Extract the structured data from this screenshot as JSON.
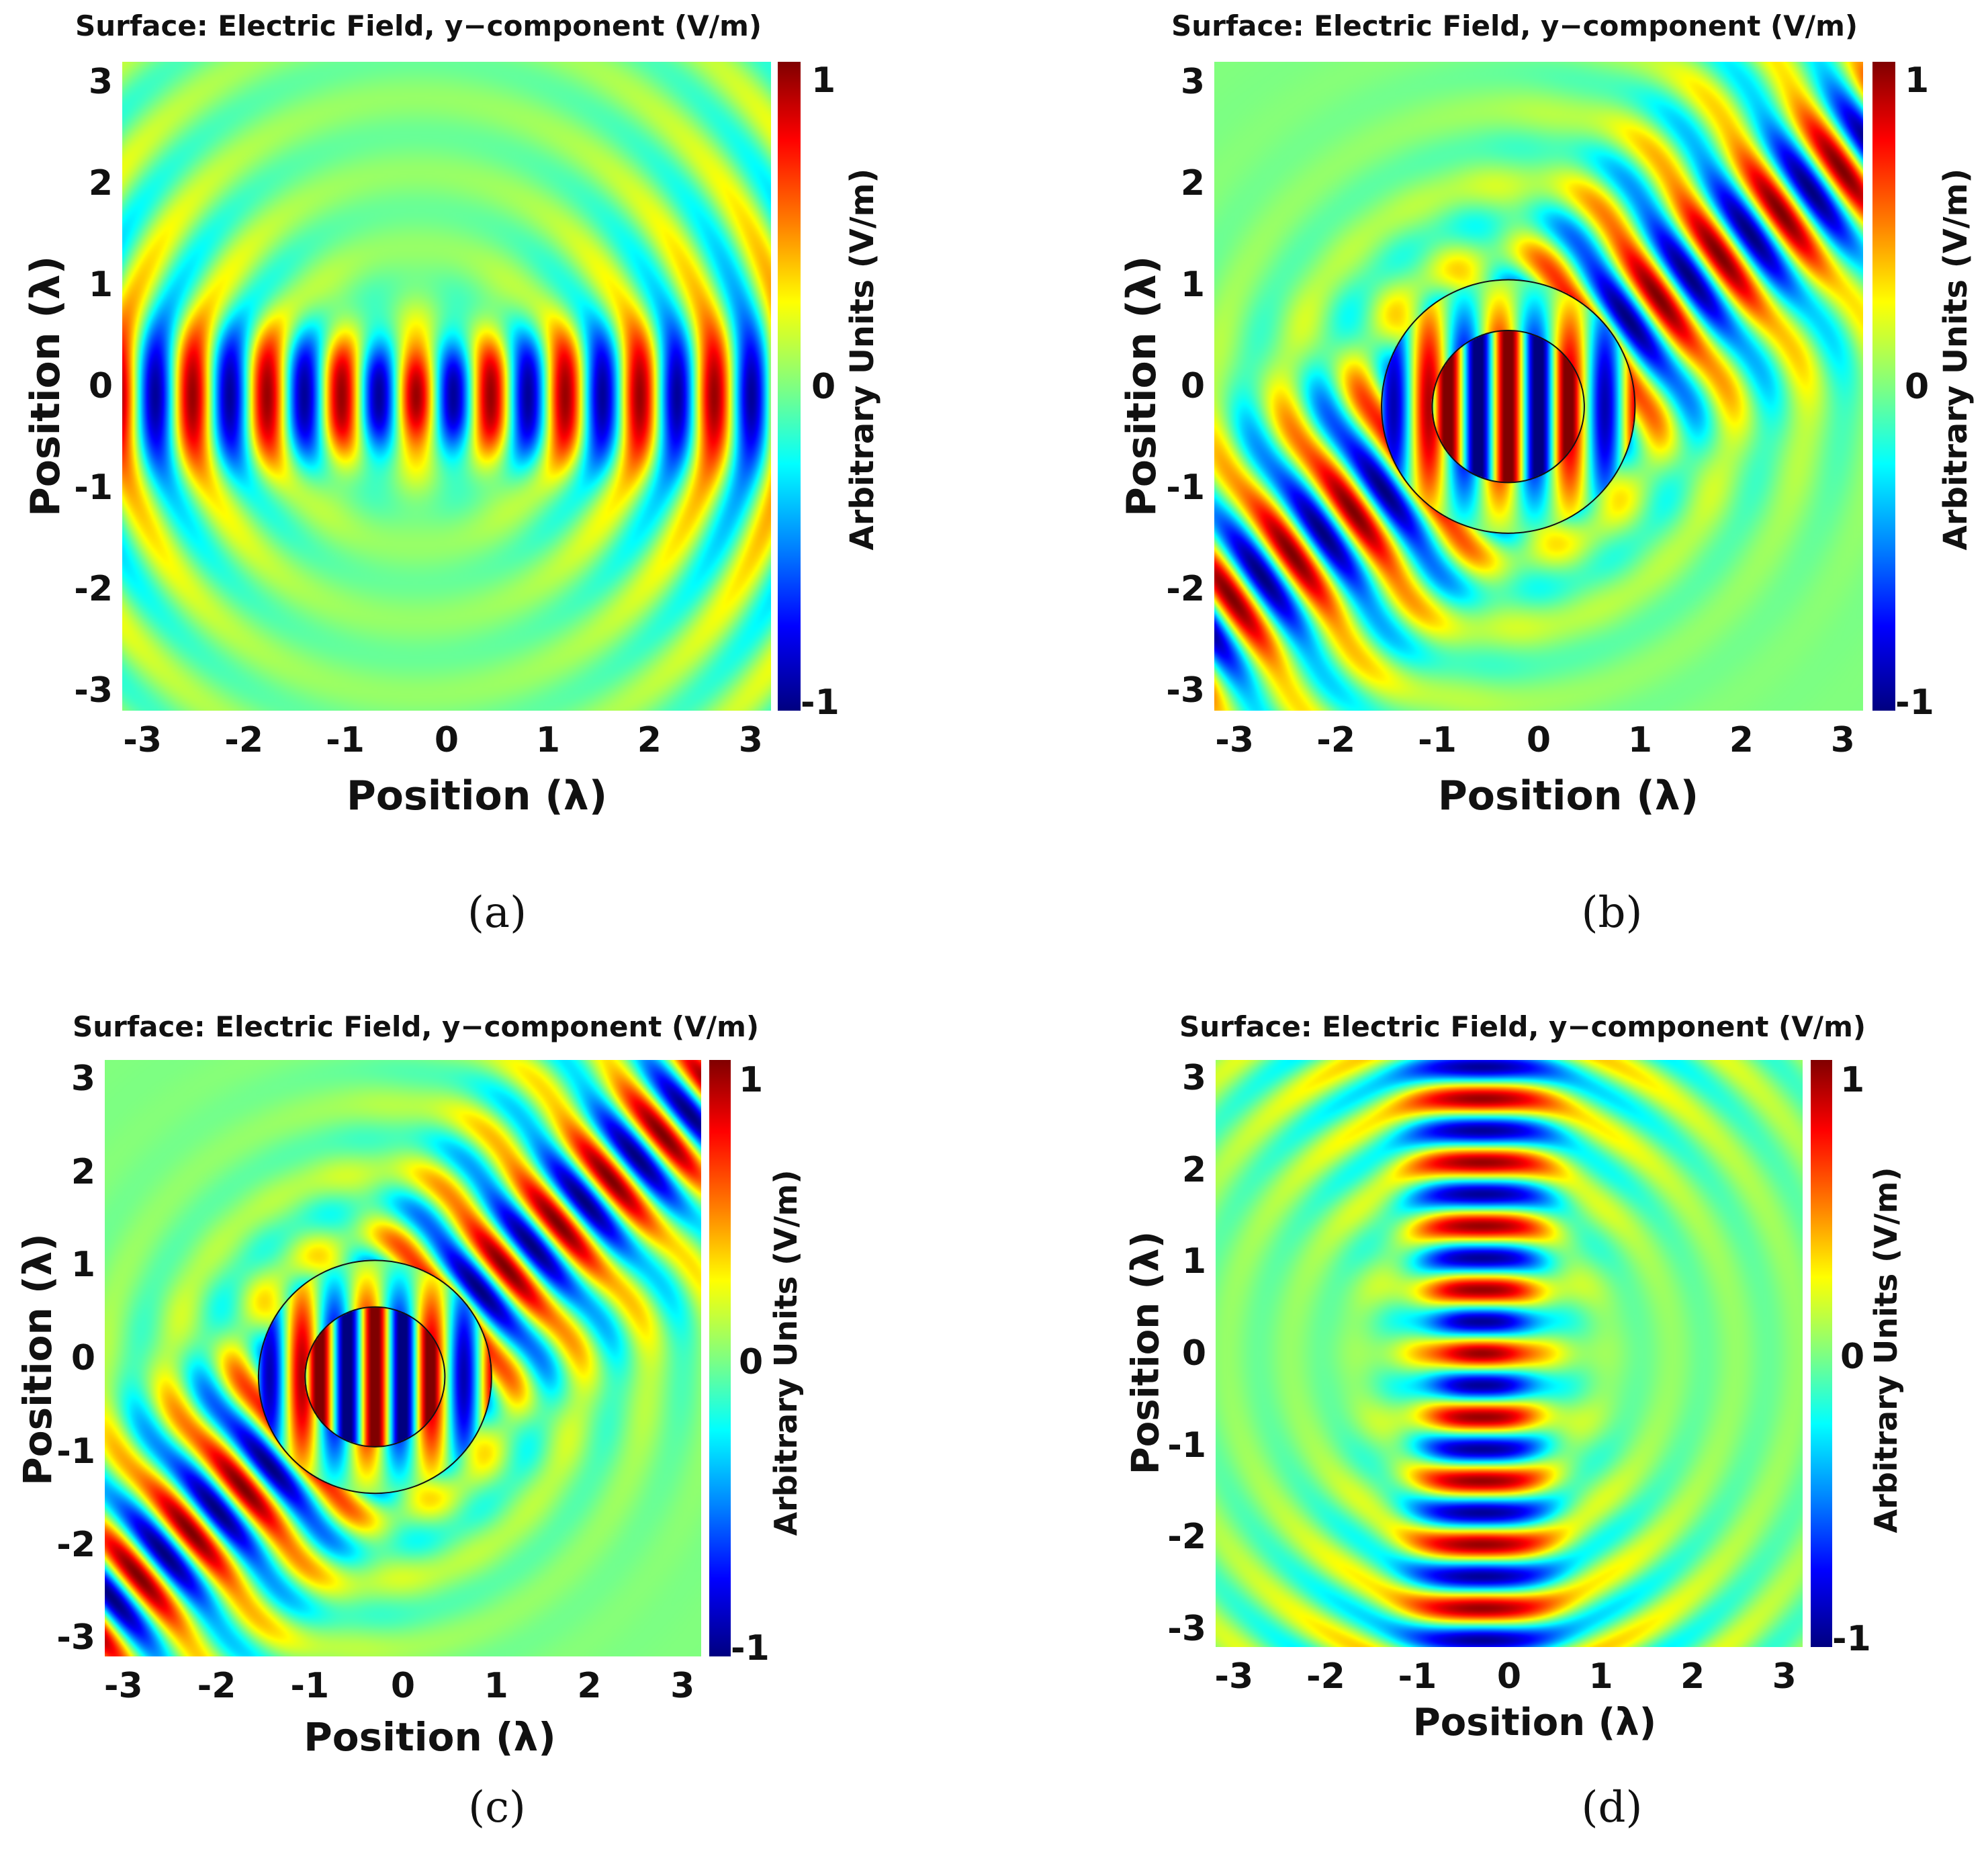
{
  "chart_data": [
    {
      "panel": "a",
      "type": "heatmap",
      "title": "Surface: Electric Field, y−component (V/m)",
      "xlabel": "Position (λ)",
      "ylabel": "Position (λ)",
      "xlim": [
        -3.2,
        3.2
      ],
      "ylim": [
        -3.2,
        3.2
      ],
      "xticks": [
        -3,
        -2,
        -1,
        0,
        1,
        2,
        3
      ],
      "yticks": [
        3,
        2,
        1,
        0,
        -1,
        -2,
        -3
      ],
      "colorbar": {
        "label": "Arbitrary Units (V/m)",
        "ticks": [
          "1",
          "0",
          "-1"
        ],
        "range": [
          -1,
          1
        ],
        "colormap": "jet"
      },
      "field": {
        "pattern": "standing",
        "axis": "horizontal",
        "center": [
          -0.3,
          -0.1
        ],
        "angle_deg": 0
      },
      "circles": []
    },
    {
      "panel": "b",
      "type": "heatmap",
      "title": "Surface: Electric Field, y−component (V/m)",
      "xlabel": "Position (λ)",
      "ylabel": "Position (λ)",
      "xlim": [
        -3.2,
        3.2
      ],
      "ylim": [
        -3.2,
        3.2
      ],
      "xticks": [
        -3,
        -2,
        -1,
        0,
        1,
        2,
        3
      ],
      "yticks": [
        3,
        2,
        1,
        0,
        -1,
        -2,
        -3
      ],
      "colorbar": {
        "label": "Arbitrary Units (V/m)",
        "ticks": [
          "1",
          "0",
          "-1"
        ],
        "range": [
          -1,
          1
        ],
        "colormap": "jet"
      },
      "field": {
        "pattern": "beam-through-shell",
        "axis": "vertical-fringes",
        "center": [
          -0.3,
          -0.2
        ],
        "angle_deg": 35
      },
      "circles": [
        {
          "cx": -0.3,
          "cy": -0.2,
          "r": 1.25
        },
        {
          "cx": -0.3,
          "cy": -0.2,
          "r": 0.75
        }
      ]
    },
    {
      "panel": "c",
      "type": "heatmap",
      "title": "Surface: Electric Field, y−component (V/m)",
      "xlabel": "Position (λ)",
      "ylabel": "Position (λ)",
      "xlim": [
        -3.2,
        3.2
      ],
      "ylim": [
        -3.2,
        3.2
      ],
      "xticks": [
        -3,
        -2,
        -1,
        0,
        1,
        2,
        3
      ],
      "yticks": [
        3,
        2,
        1,
        0,
        -1,
        -2,
        -3
      ],
      "colorbar": {
        "label": "Arbitrary Units (V/m)",
        "ticks": [
          "1",
          "0",
          "-1"
        ],
        "range": [
          -1,
          1
        ],
        "colormap": "jet"
      },
      "field": {
        "pattern": "beam-through-shell",
        "axis": "vertical-fringes",
        "center": [
          -0.3,
          -0.2
        ],
        "angle_deg": 40
      },
      "circles": [
        {
          "cx": -0.3,
          "cy": -0.2,
          "r": 1.25
        },
        {
          "cx": -0.3,
          "cy": -0.2,
          "r": 0.75
        }
      ]
    },
    {
      "panel": "d",
      "type": "heatmap",
      "title": "Surface: Electric Field, y−component (V/m)",
      "xlabel": "Position (λ)",
      "ylabel": "Position (λ)",
      "xlim": [
        -3.2,
        3.2
      ],
      "ylim": [
        -3.2,
        3.2
      ],
      "xticks": [
        -3,
        -2,
        -1,
        0,
        1,
        2,
        3
      ],
      "yticks": [
        3,
        2,
        1,
        0,
        -1,
        -2,
        -3
      ],
      "colorbar": {
        "label": "Arbitrary Units (V/m)",
        "ticks": [
          "1",
          "0",
          "-1"
        ],
        "range": [
          -1,
          1
        ],
        "colormap": "jet"
      },
      "field": {
        "pattern": "standing",
        "axis": "vertical",
        "center": [
          -0.3,
          0.0
        ],
        "angle_deg": 90
      },
      "circles": []
    }
  ],
  "captions": [
    "(a)",
    "(b)",
    "(c)",
    "(d)"
  ]
}
